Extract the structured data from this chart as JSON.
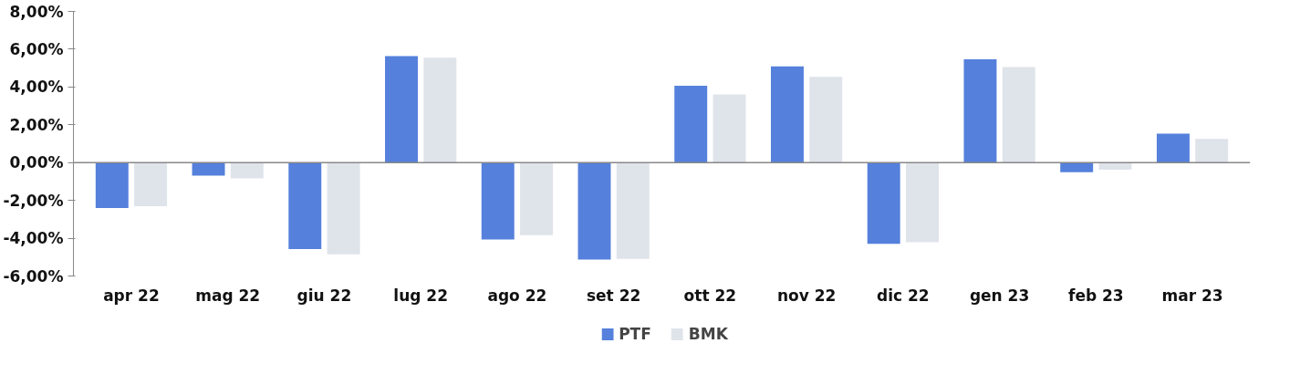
{
  "chart_data": {
    "type": "bar",
    "categories": [
      "apr 22",
      "mag 22",
      "giu 22",
      "lug 22",
      "ago 22",
      "set 22",
      "ott 22",
      "nov 22",
      "dic 22",
      "gen 23",
      "feb 23",
      "mar 23"
    ],
    "series": [
      {
        "name": "PTF",
        "color": "#5580dc",
        "values": [
          -2.4,
          -0.69,
          -4.57,
          5.64,
          -4.07,
          -5.13,
          4.07,
          5.09,
          -4.3,
          5.46,
          -0.51,
          1.53
        ]
      },
      {
        "name": "BMK",
        "color": "#dfe3ea",
        "values": [
          -2.31,
          -0.83,
          -4.85,
          5.55,
          -3.84,
          -5.09,
          3.61,
          4.54,
          -4.21,
          5.05,
          -0.37,
          1.25
        ]
      }
    ],
    "ylim": [
      -6,
      8
    ],
    "yticks": [
      {
        "value": -6,
        "label": "-6,00%"
      },
      {
        "value": -4,
        "label": "-4,00%"
      },
      {
        "value": -2,
        "label": "-2,00%"
      },
      {
        "value": 0,
        "label": "0,00%"
      },
      {
        "value": 2,
        "label": "2,00%"
      },
      {
        "value": 4,
        "label": "4,00%"
      },
      {
        "value": 6,
        "label": "6,00%"
      },
      {
        "value": 8,
        "label": "8,00%"
      }
    ],
    "grid": false,
    "ref_lines": [
      {
        "axis": "y",
        "value": 0,
        "color": "#888888"
      }
    ],
    "legend": "bottom"
  }
}
